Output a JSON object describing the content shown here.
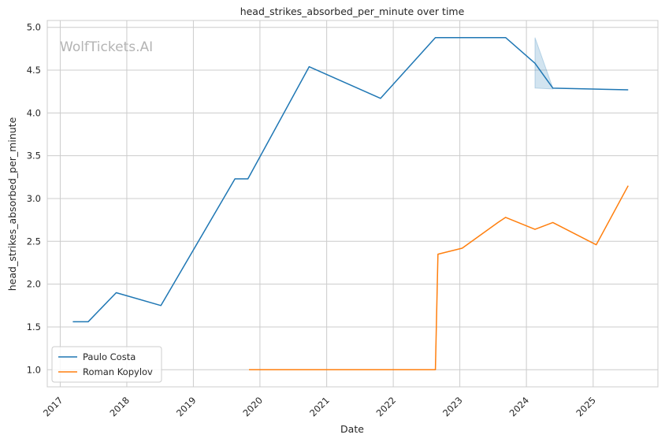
{
  "chart_data": {
    "type": "line",
    "title": "head_strikes_absorbed_per_minute over time",
    "xlabel": "Date",
    "ylabel": "head_strikes_absorbed_per_minute",
    "watermark": "WolfTickets.AI",
    "x_ticks": [
      "2017",
      "2018",
      "2019",
      "2020",
      "2021",
      "2022",
      "2023",
      "2024",
      "2025"
    ],
    "y_ticks": [
      "1.0",
      "1.5",
      "2.0",
      "2.5",
      "3.0",
      "3.5",
      "4.0",
      "4.5",
      "5.0"
    ],
    "xlim": [
      "2016-10-22",
      "2025-12-22"
    ],
    "ylim": [
      0.8,
      5.08
    ],
    "grid": true,
    "legend_position": "lower-left",
    "series": [
      {
        "name": "Paulo Costa",
        "color": "#1f77b4",
        "points": [
          {
            "x": "2017-03-11",
            "y": 1.56
          },
          {
            "x": "2017-06-03",
            "y": 1.56
          },
          {
            "x": "2017-11-04",
            "y": 1.9
          },
          {
            "x": "2018-07-07",
            "y": 1.75
          },
          {
            "x": "2019-08-17",
            "y": 3.23
          },
          {
            "x": "2019-10-27",
            "y": 3.23
          },
          {
            "x": "2020-09-27",
            "y": 4.54
          },
          {
            "x": "2021-10-23",
            "y": 4.17
          },
          {
            "x": "2022-08-20",
            "y": 4.88
          },
          {
            "x": "2023-09-09",
            "y": 4.88
          },
          {
            "x": "2024-02-17",
            "y": 4.58
          },
          {
            "x": "2024-05-25",
            "y": 4.29
          },
          {
            "x": "2025-07-12",
            "y": 4.27
          }
        ],
        "band": {
          "x": [
            "2024-02-17",
            "2024-05-25"
          ],
          "lower": [
            4.29,
            4.28
          ],
          "upper": [
            4.88,
            4.29
          ]
        }
      },
      {
        "name": "Roman Kopylov",
        "color": "#ff7f0e",
        "points": [
          {
            "x": "2019-11-02",
            "y": 1.0
          },
          {
            "x": "2022-08-20",
            "y": 1.0
          },
          {
            "x": "2022-09-03",
            "y": 2.35
          },
          {
            "x": "2023-01-14",
            "y": 2.42
          },
          {
            "x": "2023-07-29",
            "y": 2.72
          },
          {
            "x": "2023-09-09",
            "y": 2.78
          },
          {
            "x": "2024-02-17",
            "y": 2.64
          },
          {
            "x": "2024-05-25",
            "y": 2.72
          },
          {
            "x": "2025-01-18",
            "y": 2.46
          },
          {
            "x": "2025-07-12",
            "y": 3.15
          }
        ]
      }
    ]
  }
}
